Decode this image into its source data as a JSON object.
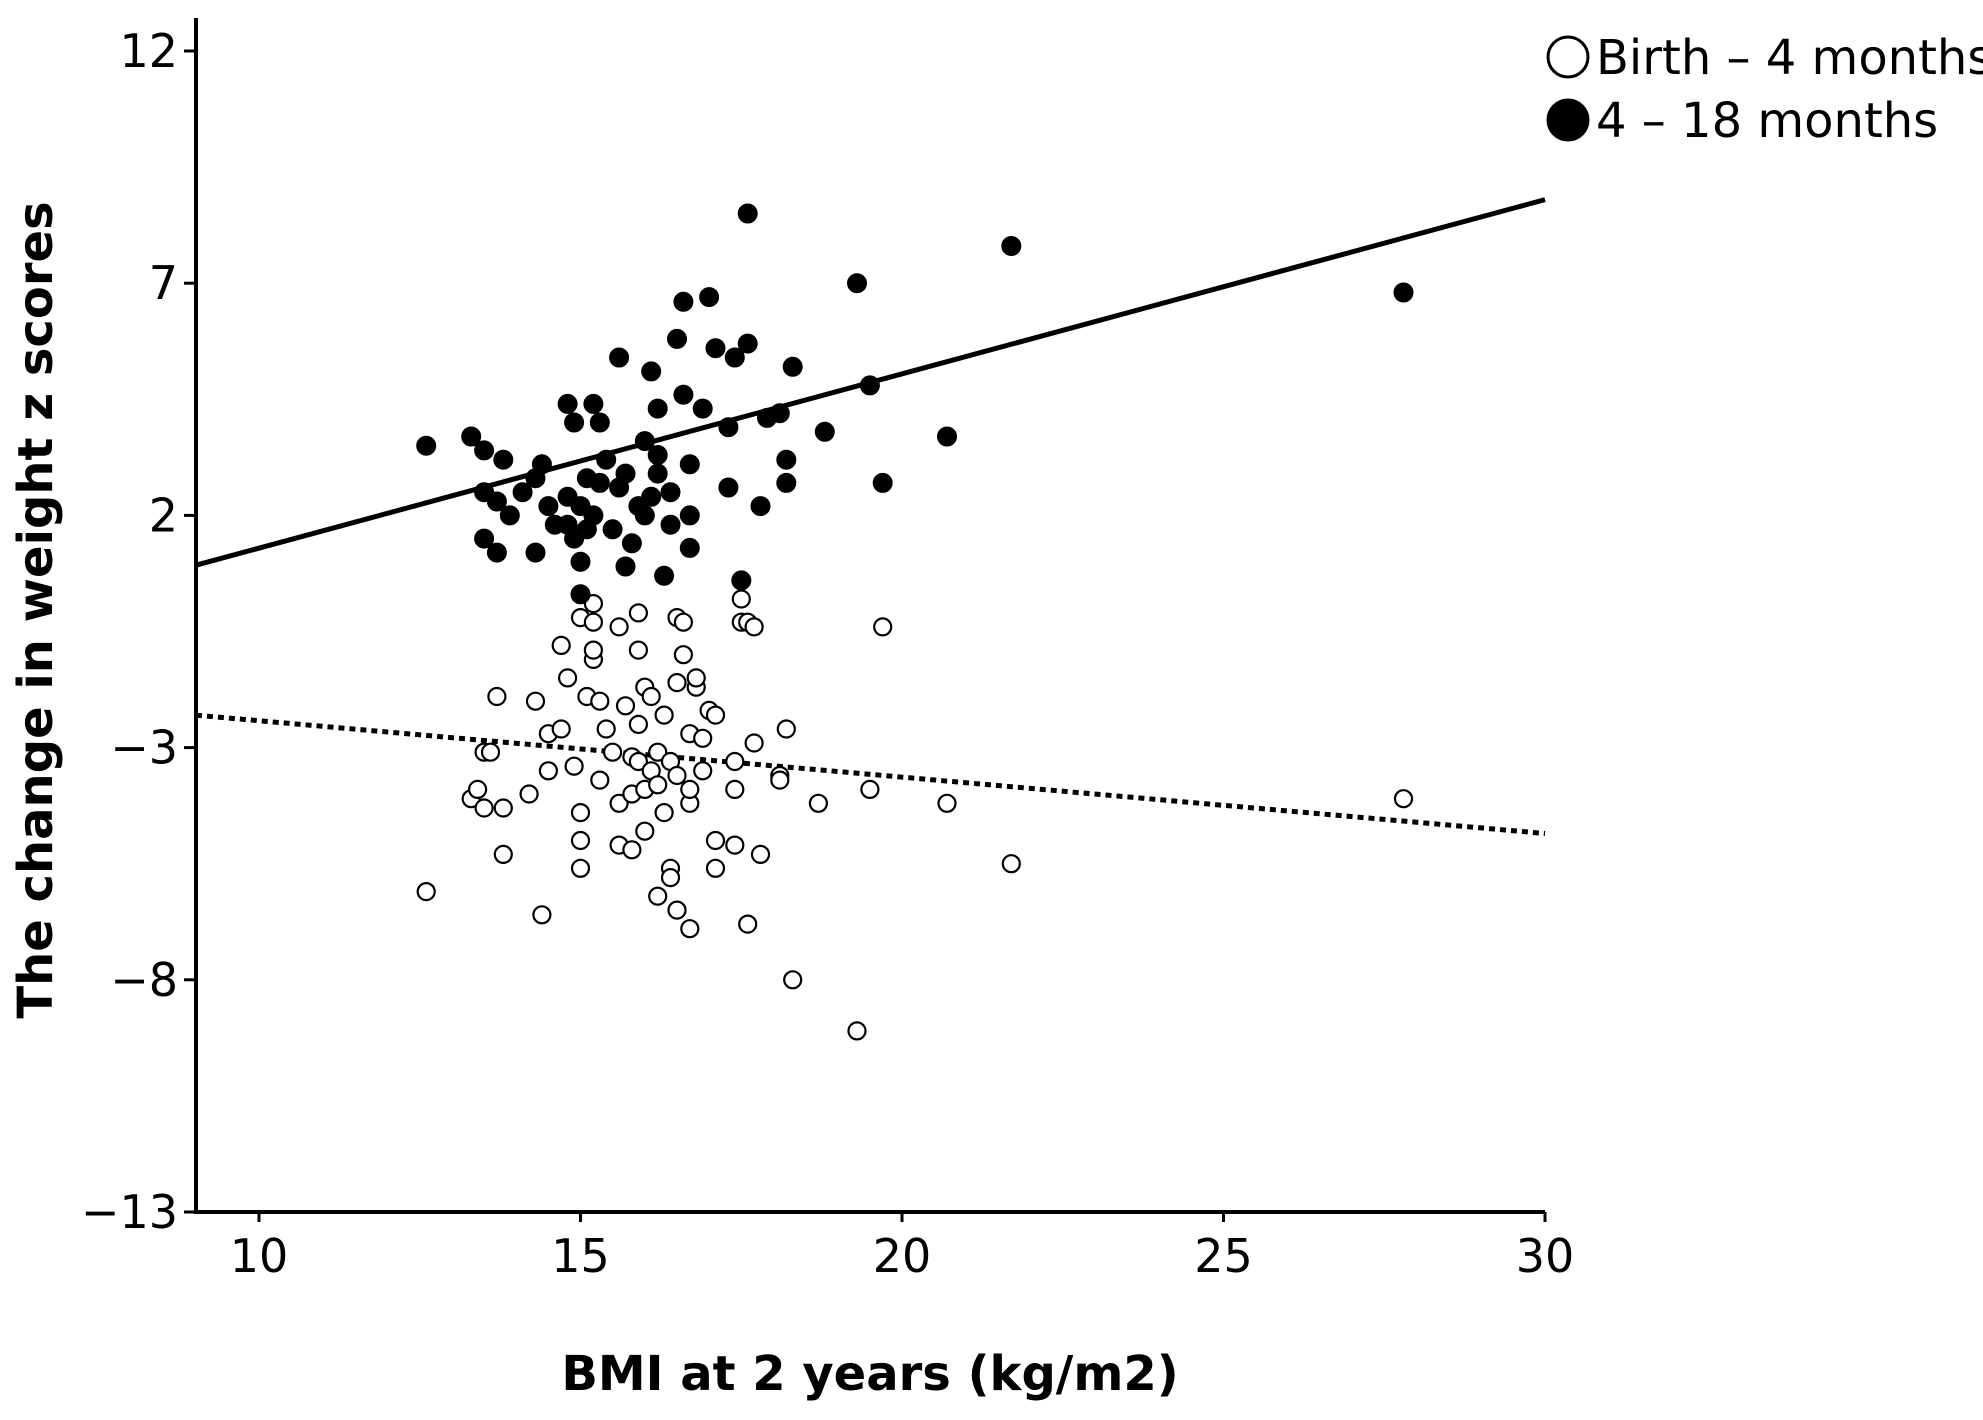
{
  "chart_data": {
    "type": "scatter",
    "title": "",
    "xlabel": "BMI at 2 years (kg/m2)",
    "ylabel": "The change in weight z scores",
    "xlim": [
      9,
      30
    ],
    "ylim": [
      -13,
      12.5
    ],
    "xticks": [
      10,
      15,
      20,
      25,
      30
    ],
    "yticks": [
      12,
      7,
      2,
      -3,
      -8,
      -13
    ],
    "legend_position": "top-right",
    "series": [
      {
        "name": "Birth – 4 months",
        "marker": "open-circle",
        "color": "#000000",
        "fit_line": {
          "style": "dotted",
          "x": [
            9,
            30
          ],
          "y": [
            -2.3,
            -4.85
          ]
        },
        "points": [
          [
            12.6,
            -6.1
          ],
          [
            13.3,
            -4.1
          ],
          [
            13.4,
            -3.9
          ],
          [
            13.5,
            -4.3
          ],
          [
            13.5,
            -3.1
          ],
          [
            13.6,
            -3.1
          ],
          [
            13.7,
            -1.9
          ],
          [
            13.8,
            -4.3
          ],
          [
            13.8,
            -5.3
          ],
          [
            14.2,
            -4.0
          ],
          [
            14.3,
            -2.0
          ],
          [
            14.4,
            -6.6
          ],
          [
            14.5,
            -2.7
          ],
          [
            14.5,
            -3.5
          ],
          [
            14.7,
            -0.8
          ],
          [
            14.7,
            -2.6
          ],
          [
            14.8,
            -1.5
          ],
          [
            14.9,
            -3.4
          ],
          [
            15.0,
            -0.2
          ],
          [
            15.0,
            -4.4
          ],
          [
            15.0,
            -5.0
          ],
          [
            15.0,
            -5.6
          ],
          [
            15.1,
            -1.9
          ],
          [
            15.2,
            -0.3
          ],
          [
            15.2,
            0.1
          ],
          [
            15.2,
            -1.1
          ],
          [
            15.2,
            -0.9
          ],
          [
            15.3,
            -2.0
          ],
          [
            15.3,
            -3.7
          ],
          [
            15.4,
            -2.6
          ],
          [
            15.5,
            -3.1
          ],
          [
            15.6,
            -4.2
          ],
          [
            15.6,
            -0.4
          ],
          [
            15.6,
            -5.1
          ],
          [
            15.7,
            -2.1
          ],
          [
            15.8,
            -3.2
          ],
          [
            15.8,
            -4.0
          ],
          [
            15.8,
            -5.2
          ],
          [
            15.9,
            -2.5
          ],
          [
            15.9,
            -0.9
          ],
          [
            15.9,
            -0.1
          ],
          [
            15.9,
            -3.3
          ],
          [
            16.0,
            -1.7
          ],
          [
            16.0,
            -3.9
          ],
          [
            16.0,
            -4.8
          ],
          [
            16.1,
            -3.5
          ],
          [
            16.1,
            -1.9
          ],
          [
            16.2,
            -3.1
          ],
          [
            16.2,
            -3.8
          ],
          [
            16.2,
            -6.2
          ],
          [
            16.3,
            -4.4
          ],
          [
            16.3,
            -2.3
          ],
          [
            16.4,
            -3.3
          ],
          [
            16.4,
            -5.6
          ],
          [
            16.4,
            -5.8
          ],
          [
            16.5,
            -3.6
          ],
          [
            16.5,
            -6.5
          ],
          [
            16.5,
            -1.6
          ],
          [
            16.5,
            -0.2
          ],
          [
            16.6,
            -1.0
          ],
          [
            16.6,
            -0.3
          ],
          [
            16.7,
            -4.2
          ],
          [
            16.7,
            -2.7
          ],
          [
            16.7,
            -3.9
          ],
          [
            16.7,
            -6.9
          ],
          [
            16.8,
            -1.7
          ],
          [
            16.8,
            -1.5
          ],
          [
            16.9,
            -3.5
          ],
          [
            16.9,
            -2.8
          ],
          [
            17.0,
            -2.2
          ],
          [
            17.1,
            -2.3
          ],
          [
            17.1,
            -5.0
          ],
          [
            17.1,
            -5.6
          ],
          [
            17.4,
            -3.9
          ],
          [
            17.4,
            -5.1
          ],
          [
            17.4,
            -3.3
          ],
          [
            17.5,
            0.2
          ],
          [
            17.5,
            -0.3
          ],
          [
            17.6,
            -0.3
          ],
          [
            17.6,
            -6.8
          ],
          [
            17.7,
            -0.4
          ],
          [
            17.7,
            -2.9
          ],
          [
            17.8,
            -5.3
          ],
          [
            18.1,
            -3.6
          ],
          [
            18.1,
            -3.7
          ],
          [
            18.2,
            -2.6
          ],
          [
            18.3,
            -8.0
          ],
          [
            18.7,
            -4.2
          ],
          [
            19.3,
            -9.1
          ],
          [
            19.5,
            -3.9
          ],
          [
            19.7,
            -0.4
          ],
          [
            20.7,
            -4.2
          ],
          [
            21.7,
            -5.5
          ],
          [
            27.8,
            -4.1
          ]
        ]
      },
      {
        "name": "4 – 18 months",
        "marker": "filled-circle",
        "color": "#000000",
        "fit_line": {
          "style": "solid",
          "x": [
            9,
            30
          ],
          "y": [
            0.92,
            8.8
          ]
        },
        "points": [
          [
            12.6,
            3.5
          ],
          [
            13.3,
            3.7
          ],
          [
            13.5,
            3.4
          ],
          [
            13.5,
            2.5
          ],
          [
            13.5,
            1.5
          ],
          [
            13.7,
            1.2
          ],
          [
            13.7,
            2.3
          ],
          [
            13.8,
            3.2
          ],
          [
            13.9,
            2.0
          ],
          [
            14.1,
            2.5
          ],
          [
            14.3,
            2.8
          ],
          [
            14.3,
            1.2
          ],
          [
            14.4,
            3.1
          ],
          [
            14.5,
            2.2
          ],
          [
            14.6,
            1.8
          ],
          [
            14.8,
            1.8
          ],
          [
            14.8,
            2.4
          ],
          [
            14.8,
            4.4
          ],
          [
            14.9,
            1.5
          ],
          [
            14.9,
            4.0
          ],
          [
            15.0,
            0.3
          ],
          [
            15.0,
            1.0
          ],
          [
            15.0,
            2.2
          ],
          [
            15.1,
            1.7
          ],
          [
            15.1,
            2.8
          ],
          [
            15.2,
            2.0
          ],
          [
            15.2,
            4.4
          ],
          [
            15.3,
            2.7
          ],
          [
            15.3,
            4.0
          ],
          [
            15.4,
            3.2
          ],
          [
            15.5,
            1.7
          ],
          [
            15.6,
            2.6
          ],
          [
            15.6,
            5.4
          ],
          [
            15.7,
            0.9
          ],
          [
            15.7,
            2.9
          ],
          [
            15.8,
            1.4
          ],
          [
            15.9,
            2.2
          ],
          [
            16.0,
            2.0
          ],
          [
            16.0,
            3.6
          ],
          [
            16.1,
            5.1
          ],
          [
            16.1,
            2.4
          ],
          [
            16.2,
            2.9
          ],
          [
            16.2,
            4.3
          ],
          [
            16.2,
            3.3
          ],
          [
            16.3,
            0.7
          ],
          [
            16.4,
            1.8
          ],
          [
            16.4,
            2.5
          ],
          [
            16.5,
            5.8
          ],
          [
            16.6,
            6.6
          ],
          [
            16.6,
            4.6
          ],
          [
            16.7,
            2.0
          ],
          [
            16.7,
            1.3
          ],
          [
            16.7,
            3.1
          ],
          [
            16.9,
            4.3
          ],
          [
            17.0,
            6.7
          ],
          [
            17.1,
            5.6
          ],
          [
            17.3,
            2.6
          ],
          [
            17.3,
            3.9
          ],
          [
            17.4,
            5.4
          ],
          [
            17.5,
            0.6
          ],
          [
            17.6,
            8.5
          ],
          [
            17.6,
            5.7
          ],
          [
            17.8,
            2.2
          ],
          [
            17.9,
            4.1
          ],
          [
            18.1,
            4.2
          ],
          [
            18.2,
            2.7
          ],
          [
            18.2,
            3.2
          ],
          [
            18.3,
            5.2
          ],
          [
            18.8,
            3.8
          ],
          [
            19.3,
            7.0
          ],
          [
            19.5,
            4.8
          ],
          [
            19.7,
            2.7
          ],
          [
            20.7,
            3.7
          ],
          [
            21.7,
            7.8
          ],
          [
            27.8,
            6.8
          ]
        ]
      }
    ]
  }
}
